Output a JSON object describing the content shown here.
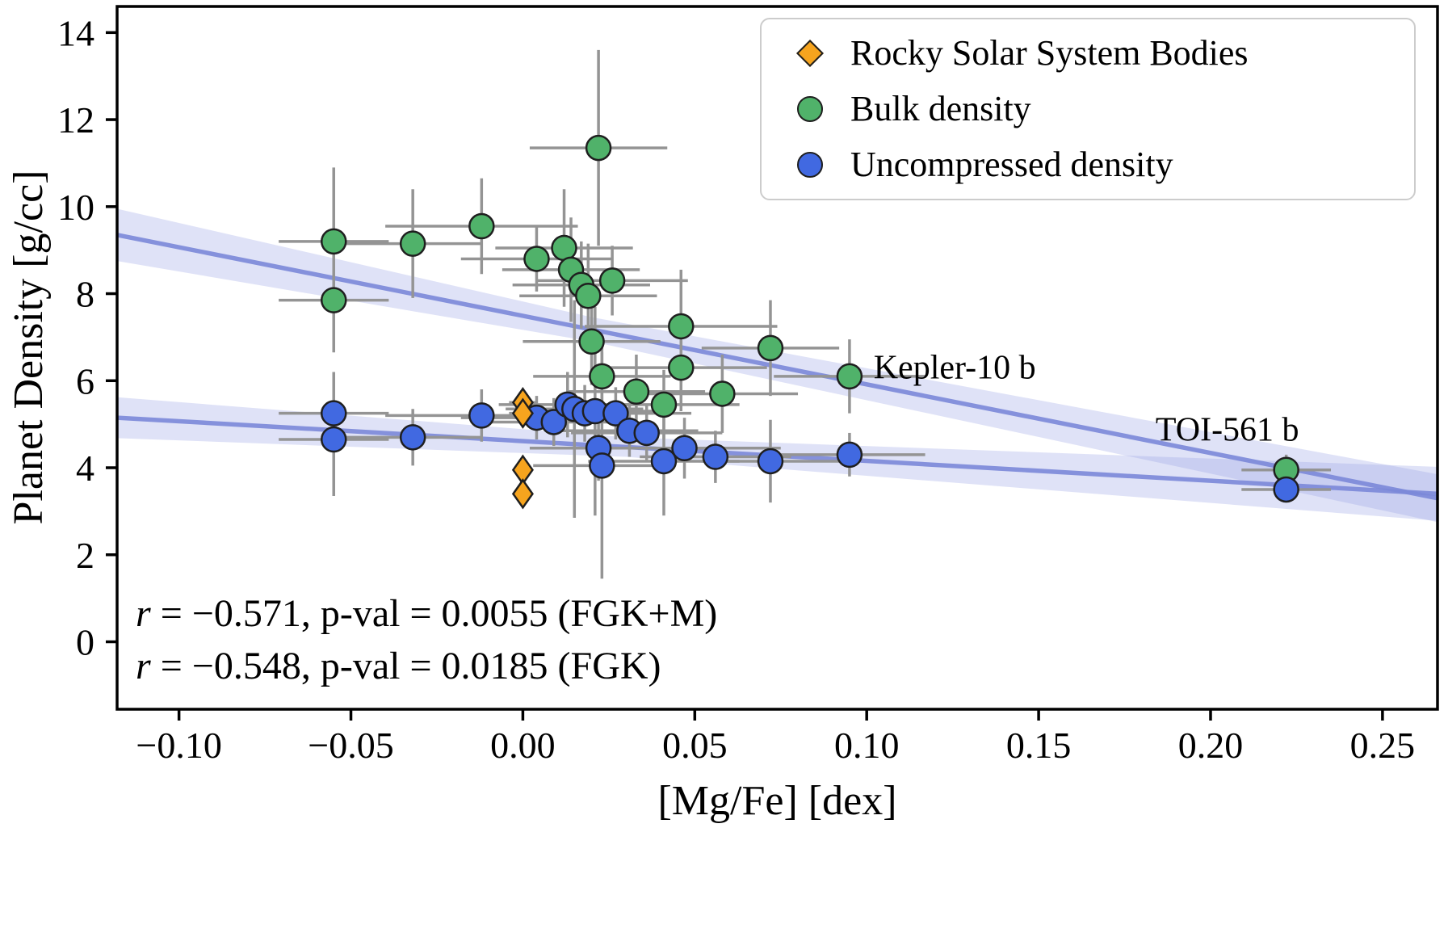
{
  "figure": {
    "background": "#ffffff"
  },
  "chart_data": {
    "type": "scatter",
    "title": "",
    "xlabel": "[Mg/Fe] [dex]",
    "ylabel": "Planet Density [g/cc]",
    "xlim": [
      -0.118,
      0.266
    ],
    "ylim": [
      -1.55,
      14.6
    ],
    "x_ticks": [
      -0.1,
      -0.05,
      0.0,
      0.05,
      0.1,
      0.15,
      0.2,
      0.25
    ],
    "x_tick_labels": [
      "−0.10",
      "−0.05",
      "0.00",
      "0.05",
      "0.10",
      "0.15",
      "0.20",
      "0.25"
    ],
    "y_ticks": [
      0,
      2,
      4,
      6,
      8,
      10,
      12,
      14
    ],
    "y_tick_labels": [
      "0",
      "2",
      "4",
      "6",
      "8",
      "10",
      "12",
      "14"
    ],
    "grid": false,
    "legend_position": "upper right",
    "series": [
      {
        "name": "Rocky Solar System Bodies",
        "marker": "diamond",
        "color": "#f6a41e",
        "points": [
          [
            0.0,
            5.5,
            0.004,
            0.1
          ],
          [
            0.0,
            5.25,
            0.004,
            0.1
          ],
          [
            0.0,
            3.95,
            0,
            0
          ],
          [
            0.0,
            3.4,
            0,
            0
          ]
        ]
      },
      {
        "name": "Bulk density",
        "marker": "circle",
        "color": "#50b26a",
        "points": [
          [
            -0.055,
            9.2,
            0.016,
            1.7
          ],
          [
            -0.055,
            7.85,
            0.016,
            1.2
          ],
          [
            -0.032,
            9.15,
            0.02,
            1.25
          ],
          [
            -0.012,
            9.55,
            0.028,
            1.1
          ],
          [
            0.004,
            8.8,
            0.022,
            0.75
          ],
          [
            0.012,
            9.05,
            0.02,
            1.35
          ],
          [
            0.014,
            8.55,
            0.02,
            1.2
          ],
          [
            0.017,
            8.2,
            0.02,
            1.0
          ],
          [
            0.019,
            7.95,
            0.02,
            1.2
          ],
          [
            0.022,
            11.35,
            0.02,
            2.25
          ],
          [
            0.026,
            8.3,
            0.022,
            0.8
          ],
          [
            0.02,
            6.9,
            0.02,
            1.0
          ],
          [
            0.023,
            6.1,
            0.02,
            0.9
          ],
          [
            0.033,
            5.75,
            0.02,
            0.85
          ],
          [
            0.041,
            5.45,
            0.022,
            0.8
          ],
          [
            0.046,
            7.25,
            0.028,
            1.3
          ],
          [
            0.046,
            6.3,
            0.025,
            1.0
          ],
          [
            0.058,
            5.7,
            0.022,
            0.9
          ],
          [
            0.072,
            6.75,
            0.02,
            1.1
          ],
          [
            0.095,
            6.1,
            0.022,
            0.85
          ],
          [
            0.222,
            3.95,
            0.013,
            0.35
          ]
        ]
      },
      {
        "name": "Uncompressed density",
        "marker": "circle",
        "color": "#4169e1",
        "points": [
          [
            -0.055,
            5.25,
            0.016,
            0.95
          ],
          [
            -0.055,
            4.65,
            0.016,
            1.3
          ],
          [
            -0.032,
            4.7,
            0.02,
            0.65
          ],
          [
            -0.012,
            5.2,
            0.028,
            0.6
          ],
          [
            0.004,
            5.15,
            0.022,
            0.5
          ],
          [
            0.009,
            5.05,
            0.02,
            0.55
          ],
          [
            0.013,
            5.45,
            0.02,
            0.75
          ],
          [
            0.015,
            5.35,
            0.02,
            2.5
          ],
          [
            0.018,
            5.25,
            0.02,
            0.65
          ],
          [
            0.021,
            5.3,
            0.02,
            2.4
          ],
          [
            0.022,
            4.45,
            0.02,
            0.75
          ],
          [
            0.023,
            4.05,
            0.02,
            2.6
          ],
          [
            0.027,
            5.25,
            0.022,
            0.6
          ],
          [
            0.031,
            4.85,
            0.02,
            0.6
          ],
          [
            0.036,
            4.8,
            0.022,
            0.65
          ],
          [
            0.041,
            4.15,
            0.022,
            1.25
          ],
          [
            0.047,
            4.45,
            0.028,
            0.7
          ],
          [
            0.056,
            4.25,
            0.022,
            0.6
          ],
          [
            0.072,
            4.15,
            0.02,
            0.95
          ],
          [
            0.095,
            4.3,
            0.022,
            0.5
          ],
          [
            0.222,
            3.5,
            0.013,
            0.3
          ]
        ]
      }
    ],
    "fit_lines": [
      {
        "name": "fgkm-fit",
        "x": [
          -0.118,
          0.266
        ],
        "y": [
          9.35,
          3.3
        ],
        "band_x": [
          -0.118,
          0.02,
          0.266
        ],
        "band_upper": [
          9.95,
          7.46,
          3.85
        ],
        "band_lower": [
          8.75,
          6.9,
          2.75
        ]
      },
      {
        "name": "fgk-fit",
        "x": [
          -0.118,
          0.266
        ],
        "y": [
          5.15,
          3.4
        ],
        "band_x": [
          -0.118,
          0.03,
          0.266
        ],
        "band_upper": [
          5.62,
          4.7,
          4.02
        ],
        "band_lower": [
          4.68,
          4.25,
          2.78
        ]
      }
    ],
    "annotations": [
      {
        "label": "Kepler-10 b",
        "x": 0.102,
        "y": 6.05
      },
      {
        "label": "TOI-561 b",
        "x": 0.184,
        "y": 4.62
      }
    ],
    "stats_lines": [
      {
        "r": "r",
        "rest": " = −0.571, p-val = 0.0055 (FGK+M)"
      },
      {
        "r": "r",
        "rest": " = −0.548, p-val = 0.0185 (FGK)"
      }
    ],
    "colors": {
      "errorbar": "#949494",
      "fit_line": "#7b88d8",
      "fit_band": "#9aa6e6",
      "marker_edge": "#1f1f1f",
      "axis": "#000000"
    }
  },
  "legend": {
    "items": [
      {
        "label": "Rocky Solar System Bodies",
        "marker": "diamond",
        "color": "#f6a41e"
      },
      {
        "label": "Bulk density",
        "marker": "circle",
        "color": "#50b26a"
      },
      {
        "label": "Uncompressed density",
        "marker": "circle",
        "color": "#4169e1"
      }
    ]
  }
}
